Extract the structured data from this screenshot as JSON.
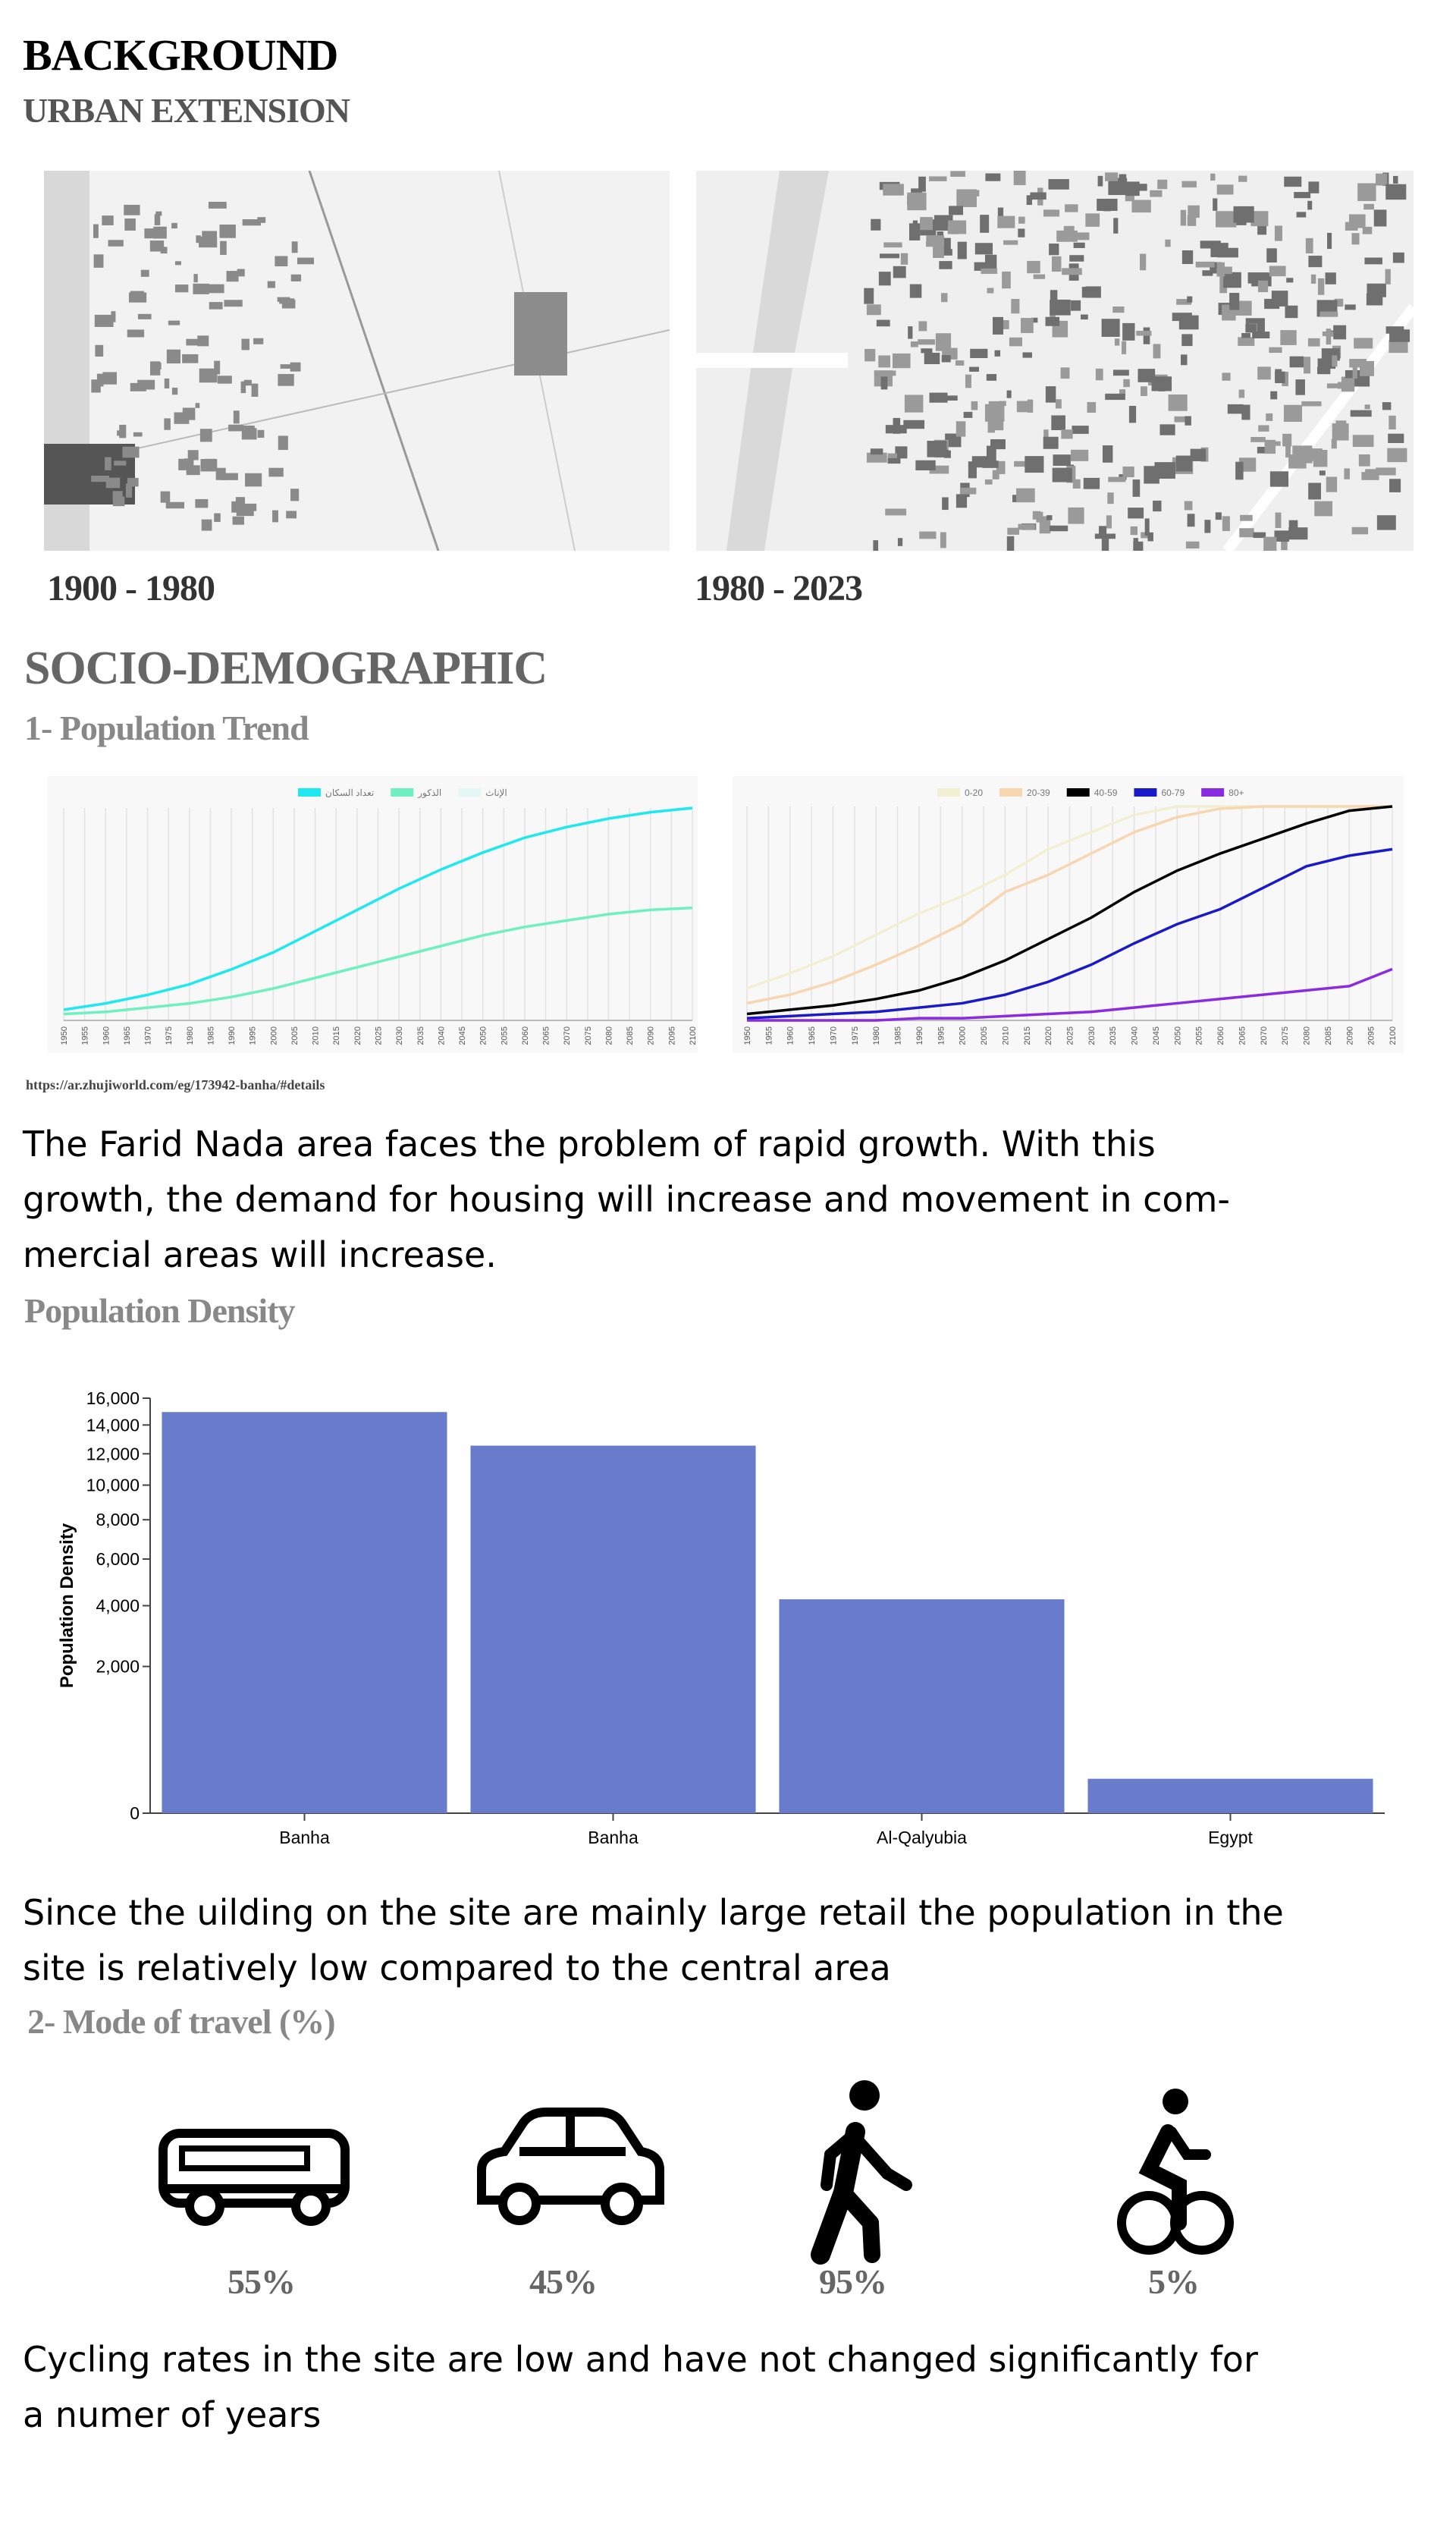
{
  "header": {
    "title": "BACKGROUND",
    "subtitle": "URBAN EXTENSION"
  },
  "maps": [
    {
      "label": "1900 - 1980"
    },
    {
      "label": "1980 - 2023"
    }
  ],
  "section": {
    "title": "SOCIO-DEMOGRAPHIC",
    "subtitle": "1- Population Trend"
  },
  "chart_data": [
    {
      "type": "line",
      "x": [
        1950,
        1960,
        1970,
        1980,
        1990,
        2000,
        2010,
        2020,
        2030,
        2040,
        2050,
        2060,
        2070,
        2080,
        2090,
        2100
      ],
      "xlim": [
        1950,
        2100
      ],
      "xticks": [
        1950,
        1955,
        1960,
        1965,
        1970,
        1975,
        1980,
        1985,
        1990,
        1995,
        2000,
        2005,
        2010,
        2015,
        2020,
        2025,
        2030,
        2035,
        2040,
        2045,
        2050,
        2055,
        2060,
        2065,
        2070,
        2075,
        2080,
        2085,
        2090,
        2095,
        2100
      ],
      "ylim": [
        0,
        100
      ],
      "grid": true,
      "series": [
        {
          "name": "تعداد السكان",
          "color": "#1ee8f0",
          "values": [
            5,
            8,
            12,
            17,
            24,
            32,
            42,
            52,
            62,
            71,
            79,
            86,
            91,
            95,
            98,
            100
          ]
        },
        {
          "name": "الذكور",
          "color": "#6ff0c0",
          "values": [
            3,
            4,
            6,
            8,
            11,
            15,
            20,
            25,
            30,
            35,
            40,
            44,
            47,
            50,
            52,
            53
          ]
        },
        {
          "name": "الإناث",
          "color": "#e4f7f4",
          "values": [
            null,
            null,
            null,
            null,
            null,
            null,
            null,
            null,
            null,
            null,
            null,
            null,
            null,
            null,
            null,
            null
          ]
        }
      ]
    },
    {
      "type": "line",
      "x": [
        1950,
        1960,
        1970,
        1980,
        1990,
        2000,
        2010,
        2020,
        2030,
        2040,
        2050,
        2060,
        2070,
        2080,
        2090,
        2100
      ],
      "xlim": [
        1950,
        2100
      ],
      "xticks": [
        1950,
        1955,
        1960,
        1965,
        1970,
        1975,
        1980,
        1985,
        1990,
        1995,
        2000,
        2005,
        2010,
        2015,
        2020,
        2025,
        2030,
        2035,
        2040,
        2045,
        2050,
        2055,
        2060,
        2065,
        2070,
        2075,
        2080,
        2085,
        2090,
        2095,
        2100
      ],
      "ylim": [
        0,
        100
      ],
      "grid": true,
      "series": [
        {
          "name": "0-20",
          "color": "#f3efd2",
          "values": [
            15,
            22,
            30,
            40,
            50,
            58,
            68,
            80,
            88,
            96,
            100,
            100,
            100,
            100,
            100,
            100
          ]
        },
        {
          "name": "20-39",
          "color": "#f7d6b0",
          "values": [
            8,
            12,
            18,
            26,
            35,
            45,
            60,
            68,
            78,
            88,
            95,
            99,
            100,
            100,
            100,
            100
          ]
        },
        {
          "name": "40-59",
          "color": "#000000",
          "values": [
            3,
            5,
            7,
            10,
            14,
            20,
            28,
            38,
            48,
            60,
            70,
            78,
            85,
            92,
            98,
            100
          ]
        },
        {
          "name": "60-79",
          "color": "#1a1ac8",
          "values": [
            1,
            2,
            3,
            4,
            6,
            8,
            12,
            18,
            26,
            36,
            45,
            52,
            62,
            72,
            77,
            80
          ]
        },
        {
          "name": "80+",
          "color": "#8a2be2",
          "values": [
            0,
            0,
            0,
            0,
            1,
            1,
            2,
            3,
            4,
            6,
            8,
            10,
            12,
            14,
            16,
            24
          ]
        }
      ]
    },
    {
      "type": "bar",
      "categories": [
        "Banha",
        "Banha",
        "Al-Qalyubia",
        "Egypt"
      ],
      "values": [
        14950,
        12550,
        4250,
        110
      ],
      "color": "#687ccb",
      "y_label": "Population Density",
      "scale": "sqrt",
      "ylim": [
        0,
        16000
      ],
      "yticks": [
        0,
        {
          "value": 2000,
          "label": "2,000"
        },
        {
          "value": 4000,
          "label": "4,000"
        },
        {
          "value": 6000,
          "label": "6,000"
        },
        {
          "value": 8000,
          "label": "8,000"
        },
        {
          "value": 10000,
          "label": "10,000"
        },
        {
          "value": 12000,
          "label": "12,000"
        },
        {
          "value": 14000,
          "label": "14,000"
        },
        {
          "value": 16000,
          "label": "16,000"
        }
      ]
    }
  ],
  "source": "https://ar.zhujiworld.com/eg/173942-banha/#details",
  "paragraphs": [
    {
      "lines": [
        "The Farid Nada area faces the problem of rapid growth. With this",
        "growth, the demand for housing will increase and movement in com-",
        "mercial areas will increase."
      ]
    },
    {
      "lines": [
        "Since the uilding on the site are mainly large retail the population in the",
        "site is relatively low compared to the central area"
      ]
    },
    {
      "lines": [
        "Cycling rates in the site are low and have not changed significantly for",
        "a numer of years"
      ]
    }
  ],
  "density_title": "Population Density",
  "travel": {
    "title": "2- Mode of travel (%)",
    "modes": [
      "55%",
      "45%",
      "95%",
      "5%"
    ]
  }
}
